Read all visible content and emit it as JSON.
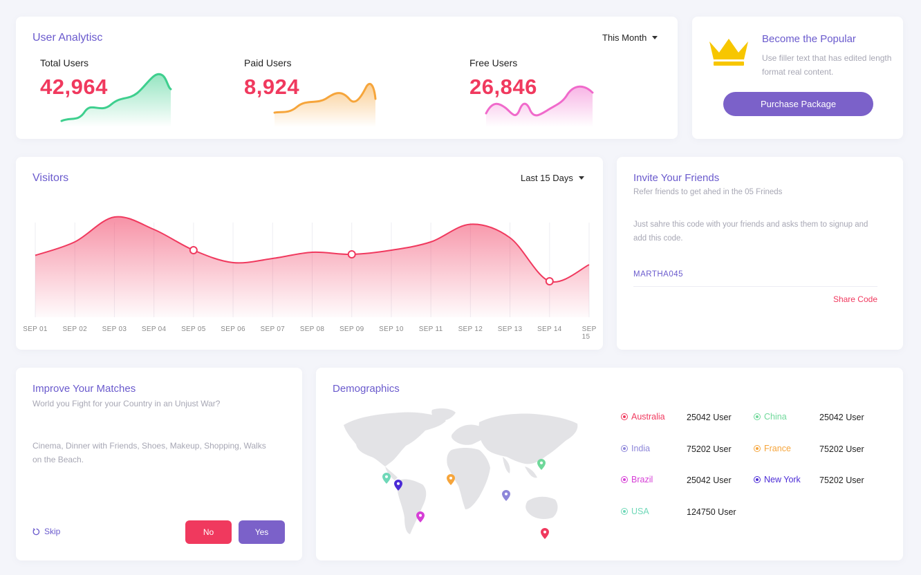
{
  "analytics": {
    "title": "User Analytisc",
    "period": "This Month",
    "stats": [
      {
        "label": "Total Users",
        "value": "42,964",
        "color": "#3ecf8e"
      },
      {
        "label": "Paid Users",
        "value": "8,924",
        "color": "#f6a53b"
      },
      {
        "label": "Free Users",
        "value": "26,846",
        "color": "#f06acb"
      }
    ]
  },
  "popular": {
    "title": "Become the Popular",
    "text": "Use filler text that has edited length format real content.",
    "button": "Purchase Package",
    "crown_color": "#f7c600"
  },
  "visitors": {
    "title": "Visitors",
    "period": "Last 15 Days"
  },
  "chart_data": {
    "type": "area",
    "title": "Visitors",
    "categories": [
      "SEP 01",
      "SEP 02",
      "SEP 03",
      "SEP 04",
      "SEP 05",
      "SEP 06",
      "SEP 07",
      "SEP 08",
      "SEP 09",
      "SEP 10",
      "SEP 11",
      "SEP 12",
      "SEP 13",
      "SEP 14",
      "SEP 15"
    ],
    "series": [
      {
        "values": [
          45,
          58,
          82,
          70,
          50,
          38,
          42,
          48,
          46,
          50,
          58,
          75,
          62,
          20,
          36
        ]
      }
    ],
    "highlighted_points": [
      "SEP 05",
      "SEP 09",
      "SEP 14"
    ],
    "color": "#f0395e",
    "grid": "vertical"
  },
  "invite": {
    "title": "Invite Your Friends",
    "subtitle": "Refer friends to get ahed in the 05 Frineds",
    "text": "Just sahre this code with your friends and asks them to signup and add this code.",
    "code": "MARTHA045",
    "share": "Share Code"
  },
  "matches": {
    "title": "Improve Your Matches",
    "question": "World you Fight for your Country in an Unjust War?",
    "interests": "Cinema, Dinner with Friends, Shoes, Makeup, Shopping, Walks on the Beach.",
    "skip": "Skip",
    "no": "No",
    "yes": "Yes"
  },
  "demographics": {
    "title": "Demographics",
    "items": [
      {
        "name": "Australia",
        "count": "25042 User",
        "color": "#f0395e"
      },
      {
        "name": "China",
        "count": "25042 User",
        "color": "#6fd89a"
      },
      {
        "name": "India",
        "count": "75202 User",
        "color": "#8d86d9"
      },
      {
        "name": "France",
        "count": "75202 User",
        "color": "#f6a53b"
      },
      {
        "name": "Brazil",
        "count": "25042 User",
        "color": "#d63ed6"
      },
      {
        "name": "New York",
        "count": "75202 User",
        "color": "#4b2bd6"
      },
      {
        "name": "USA",
        "count": "124750 User",
        "color": "#6fd8b8"
      }
    ]
  }
}
